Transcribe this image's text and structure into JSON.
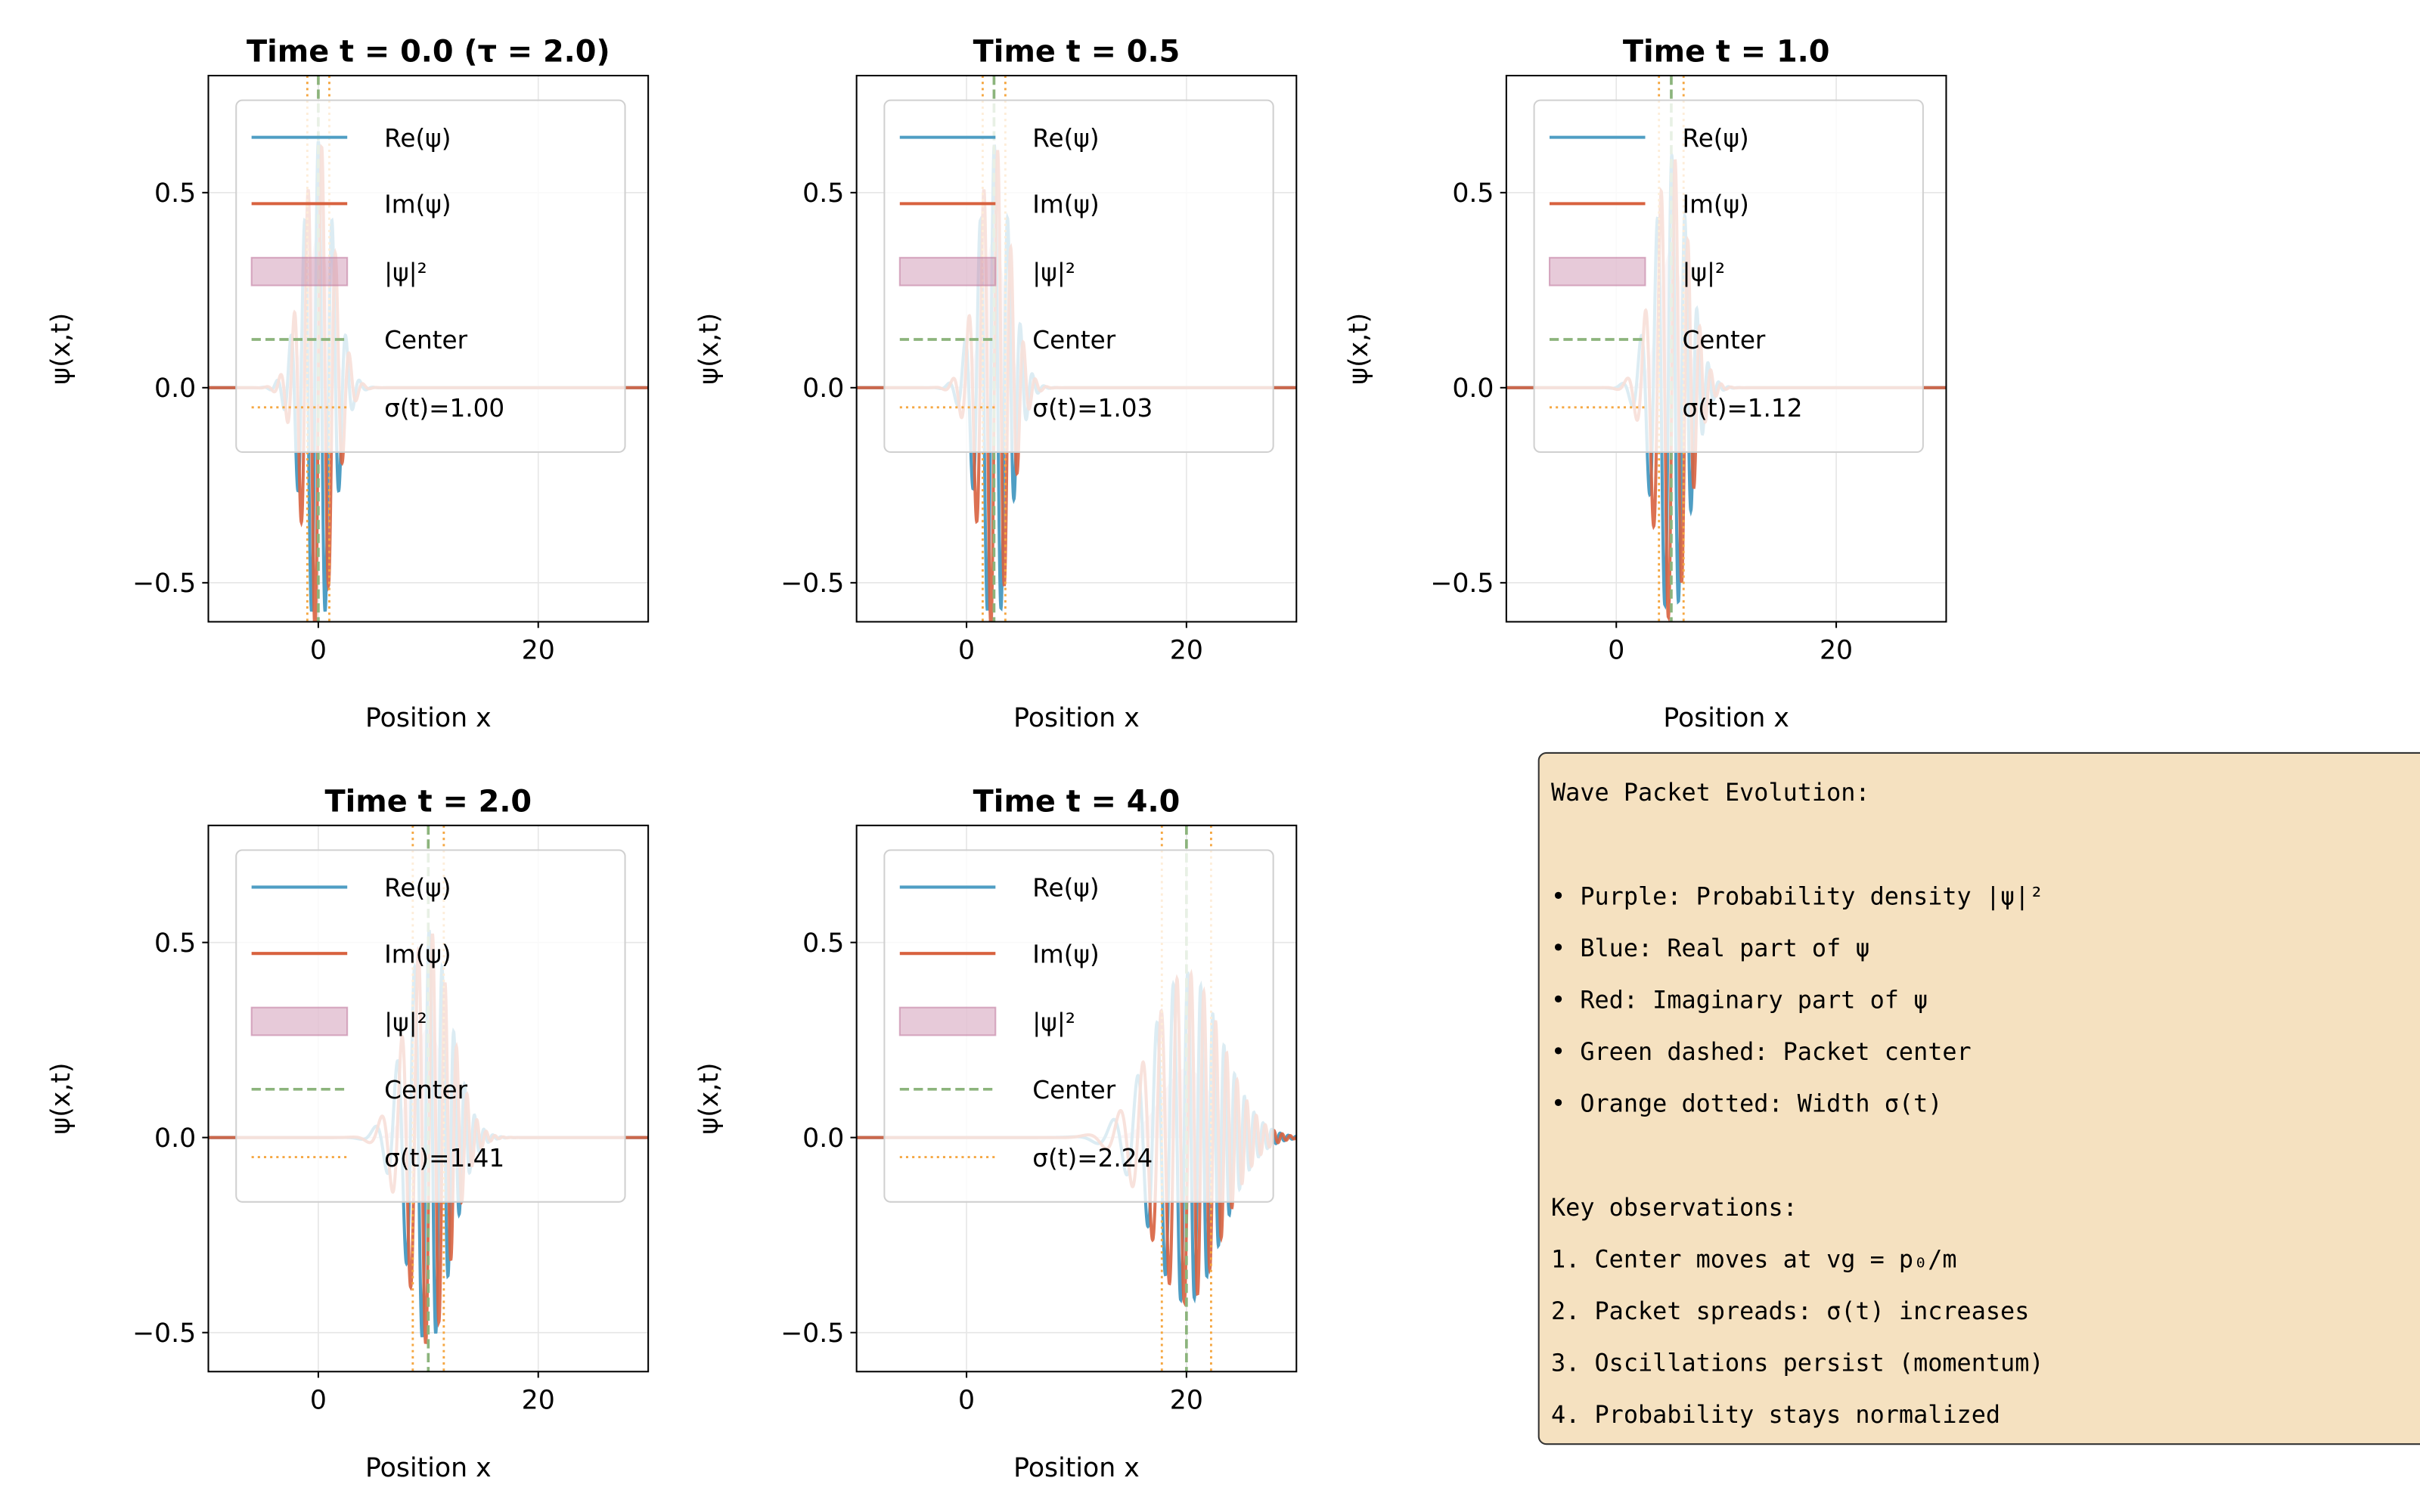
{
  "chart_data": {
    "type": "line",
    "xlabel": "Position x",
    "ylabel": "ψ(x,t)",
    "xlim": [
      -10,
      30
    ],
    "ylim": [
      -0.6,
      0.8
    ],
    "xticks": [
      0,
      20
    ],
    "xtick_labels": [
      "0",
      "20"
    ],
    "yticks": [
      -0.5,
      0.0,
      0.5
    ],
    "ytick_labels": [
      "−0.5",
      "0.0",
      "0.5"
    ],
    "grid": true,
    "legend_placement": "upper-left",
    "wave_number_p0": 5,
    "tau": 2.0,
    "colors": {
      "re": "#4f9ec4",
      "im": "#d8623f",
      "prob": "#c27ba0",
      "center": "#8cb47c",
      "width": "#f5a742"
    },
    "panels": [
      {
        "title": "Time t = 0.0 (τ = 2.0)",
        "t": 0.0,
        "center": 0.0,
        "sigma": 1.0,
        "legend": [
          "Re(ψ)",
          "Im(ψ)",
          "|ψ|²",
          "Center",
          "σ(t)=1.00"
        ]
      },
      {
        "title": "Time t = 0.5",
        "t": 0.5,
        "center": 2.5,
        "sigma": 1.03,
        "legend": [
          "Re(ψ)",
          "Im(ψ)",
          "|ψ|²",
          "Center",
          "σ(t)=1.03"
        ]
      },
      {
        "title": "Time t = 1.0",
        "t": 1.0,
        "center": 5.0,
        "sigma": 1.12,
        "legend": [
          "Re(ψ)",
          "Im(ψ)",
          "|ψ|²",
          "Center",
          "σ(t)=1.12"
        ]
      },
      {
        "title": "Time t = 2.0",
        "t": 2.0,
        "center": 10.0,
        "sigma": 1.41,
        "legend": [
          "Re(ψ)",
          "Im(ψ)",
          "|ψ|²",
          "Center",
          "σ(t)=1.41"
        ]
      },
      {
        "title": "Time t = 4.0",
        "t": 4.0,
        "center": 20.0,
        "sigma": 2.24,
        "legend": [
          "Re(ψ)",
          "Im(ψ)",
          "|ψ|²",
          "Center",
          "σ(t)=2.24"
        ]
      }
    ]
  },
  "info_box": {
    "bg": "#f5e1c0",
    "lines": [
      "Wave Packet Evolution:",
      "",
      "• Purple: Probability density |ψ|²",
      "• Blue: Real part of ψ",
      "• Red: Imaginary part of ψ",
      "• Green dashed: Packet center",
      "• Orange dotted: Width σ(t)",
      "",
      "Key observations:",
      "1. Center moves at vg = p₀/m",
      "2. Packet spreads: σ(t) increases",
      "3. Oscillations persist (momentum)",
      "4. Probability stays normalized"
    ]
  }
}
